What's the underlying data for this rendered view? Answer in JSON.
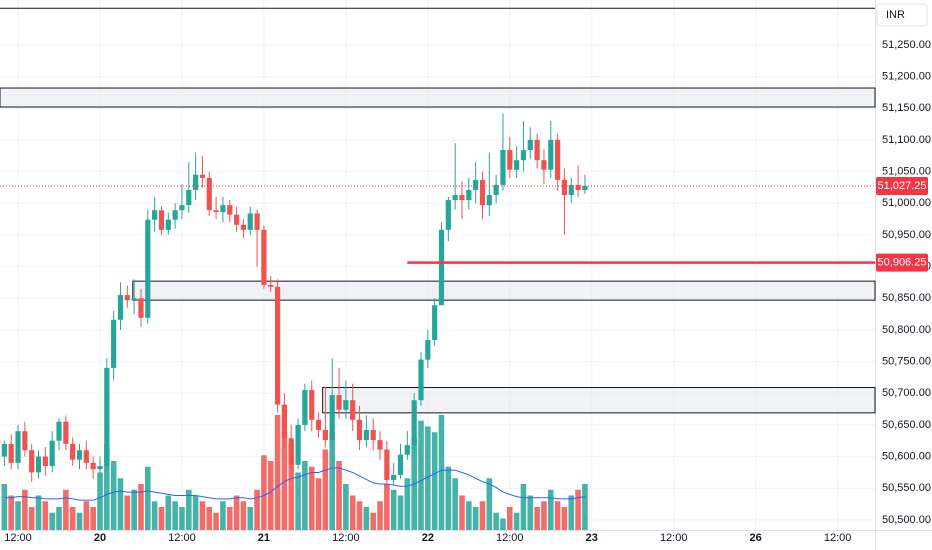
{
  "chart_data": {
    "type": "candlestick",
    "currency": "INR",
    "x": [
      -14,
      -13,
      -12,
      -11,
      -10,
      -9,
      -8,
      -7,
      -6,
      -5,
      -4,
      -3,
      -2,
      -1,
      0,
      1,
      2,
      3,
      4,
      5,
      6,
      7,
      8,
      9,
      10,
      11,
      12,
      13,
      14,
      15,
      16,
      17,
      18,
      19,
      20,
      21,
      22,
      23,
      24,
      25,
      26,
      27,
      28,
      29,
      30,
      31,
      32,
      33,
      34,
      35,
      36,
      37,
      38,
      39,
      40,
      41,
      42,
      43,
      44,
      45,
      46,
      47,
      48,
      49,
      50,
      51,
      52,
      53,
      54,
      55,
      56,
      57,
      58,
      59,
      60,
      61,
      62,
      63,
      64,
      65,
      66,
      67,
      68,
      69,
      70,
      71
    ],
    "open": [
      50600,
      50620,
      50590,
      50640,
      50610,
      50575,
      50600,
      50585,
      50625,
      50655,
      50620,
      50595,
      50610,
      50590,
      50580,
      50585,
      50740,
      50816,
      50855,
      50847,
      50850,
      50819,
      50974,
      50989,
      50958,
      50974,
      50989,
      50997,
      51021,
      51045,
      51040,
      50989,
      50986,
      50997,
      50982,
      50966,
      50958,
      50984,
      50958,
      50871,
      50868,
      50682,
      50629,
      50587,
      50650,
      50705,
      50658,
      50642,
      50626,
      50697,
      50674,
      50689,
      50658,
      50626,
      50642,
      50626,
      50611,
      50563,
      50571,
      50603,
      50618,
      50689,
      50753,
      50784,
      50839,
      50958,
      51005,
      51013,
      51005,
      51021,
      51037,
      50997,
      51013,
      51029,
      51084,
      51053,
      51068,
      51084,
      51100,
      51068,
      51053,
      51100,
      51037,
      51013,
      51029,
      51021
    ],
    "high": [
      50625,
      50635,
      50650,
      50655,
      50620,
      50610,
      50615,
      50640,
      50660,
      50665,
      50630,
      50620,
      50625,
      50600,
      50600,
      50755,
      50830,
      50875,
      50870,
      50880,
      50865,
      50990,
      51010,
      50995,
      50985,
      51000,
      51030,
      51065,
      51080,
      51075,
      51050,
      51010,
      51010,
      51005,
      50995,
      50975,
      50995,
      50990,
      50965,
      50885,
      50880,
      50700,
      50650,
      50660,
      50715,
      50720,
      50670,
      50710,
      50755,
      50740,
      50720,
      50715,
      50680,
      50665,
      50660,
      50640,
      50625,
      50590,
      50620,
      50640,
      50700,
      50765,
      50800,
      50850,
      50970,
      51010,
      51095,
      51035,
      51040,
      51065,
      51050,
      51080,
      51045,
      51142,
      51105,
      51090,
      51130,
      51120,
      51110,
      51085,
      51130,
      51110,
      51055,
      51040,
      51060,
      51045
    ],
    "low": [
      50585,
      50580,
      50580,
      50600,
      50560,
      50565,
      50570,
      50575,
      50610,
      50610,
      50585,
      50580,
      50580,
      50565,
      50565,
      50575,
      50720,
      50800,
      50835,
      50825,
      50805,
      50810,
      50955,
      50950,
      50950,
      50960,
      50975,
      50985,
      51005,
      51025,
      50980,
      50975,
      50970,
      50970,
      50955,
      50945,
      50950,
      50900,
      50865,
      50860,
      50670,
      50615,
      50575,
      50580,
      50640,
      50640,
      50630,
      50615,
      50615,
      50660,
      50660,
      50640,
      50610,
      50615,
      50610,
      50595,
      50550,
      50555,
      50565,
      50595,
      50610,
      50680,
      50740,
      50775,
      50840,
      50940,
      50990,
      50975,
      50990,
      51000,
      50975,
      50980,
      51000,
      51020,
      51040,
      51040,
      51050,
      51070,
      51055,
      51030,
      51040,
      51020,
      50950,
      51000,
      51010,
      51015
    ],
    "close": [
      50620,
      50590,
      50640,
      50610,
      50575,
      50600,
      50585,
      50625,
      50655,
      50620,
      50595,
      50610,
      50590,
      50580,
      50585,
      50740,
      50816,
      50855,
      50847,
      50850,
      50819,
      50974,
      50989,
      50958,
      50974,
      50989,
      50997,
      51021,
      51045,
      51040,
      50989,
      50986,
      50997,
      50982,
      50966,
      50958,
      50984,
      50958,
      50871,
      50868,
      50682,
      50629,
      50587,
      50650,
      50705,
      50658,
      50642,
      50626,
      50697,
      50674,
      50689,
      50658,
      50626,
      50642,
      50626,
      50611,
      50563,
      50571,
      50603,
      50618,
      50689,
      50753,
      50784,
      50839,
      50958,
      51005,
      51013,
      51005,
      51021,
      51037,
      50997,
      51013,
      51029,
      51084,
      51053,
      51068,
      51084,
      51100,
      51068,
      51053,
      51100,
      51037,
      51013,
      51029,
      51021,
      51027.25
    ],
    "volume": [
      40,
      30,
      25,
      35,
      20,
      30,
      25,
      15,
      20,
      35,
      20,
      15,
      25,
      20,
      50,
      75,
      60,
      45,
      30,
      35,
      40,
      55,
      25,
      20,
      30,
      25,
      20,
      35,
      30,
      25,
      20,
      15,
      25,
      20,
      30,
      25,
      20,
      35,
      65,
      60,
      100,
      85,
      75,
      50,
      60,
      55,
      45,
      70,
      85,
      60,
      40,
      30,
      25,
      20,
      15,
      25,
      40,
      35,
      30,
      45,
      80,
      95,
      90,
      85,
      100,
      55,
      45,
      30,
      25,
      20,
      25,
      45,
      15,
      10,
      20,
      15,
      40,
      30,
      20,
      25,
      35,
      25,
      20,
      30,
      35,
      40
    ],
    "volume_ma": [
      28,
      28,
      29,
      29,
      28,
      28,
      27,
      27,
      27,
      28,
      27,
      26,
      26,
      26,
      28,
      31,
      33,
      34,
      33,
      33,
      33,
      34,
      33,
      32,
      31,
      30,
      30,
      30,
      30,
      29,
      28,
      27,
      27,
      27,
      28,
      28,
      27,
      28,
      30,
      33,
      38,
      42,
      45,
      46,
      48,
      50,
      50,
      52,
      54,
      54,
      52,
      50,
      47,
      44,
      41,
      40,
      40,
      39,
      38,
      38,
      40,
      43,
      46,
      49,
      52,
      52,
      52,
      50,
      48,
      45,
      42,
      40,
      37,
      33,
      31,
      29,
      28,
      28,
      28,
      28,
      28,
      27,
      27,
      27,
      28,
      29
    ],
    "volume_lim": [
      0,
      100
    ],
    "up_color": "#26a69a",
    "down_color": "#ef5350",
    "volume_ma_color": "#2962ff",
    "xlim": [
      -14.64,
      113.47
    ],
    "xticks": [
      {
        "value": -12,
        "label": "12:00"
      },
      0,
      12,
      24,
      36,
      48,
      60,
      72,
      84,
      96,
      108
    ],
    "xtick_labels": [
      "12:00",
      "20",
      "12:00",
      "21",
      "12:00",
      "22",
      "12:00",
      "23",
      "12:00",
      "26",
      "12:00"
    ],
    "ylim": [
      50484,
      51321
    ],
    "yticks": [
      {
        "value": 50500,
        "label": "50,500.00"
      },
      {
        "value": 50550,
        "label": "50,550.00"
      },
      {
        "value": 50600,
        "label": "50,600.00"
      },
      {
        "value": 50650,
        "label": "50,650.00"
      },
      {
        "value": 50700,
        "label": "50,700.00"
      },
      {
        "value": 50750,
        "label": "50,750.00"
      },
      {
        "value": 50800,
        "label": "50,800.00"
      },
      {
        "value": 50850,
        "label": "50,850.00"
      },
      {
        "value": 50900,
        "label": "50,900.00"
      },
      {
        "value": 50950,
        "label": "50,950.00"
      },
      {
        "value": 51000,
        "label": "51,000.00"
      },
      {
        "value": 51050,
        "label": "51,050.00"
      },
      {
        "value": 51100,
        "label": "51,100.00"
      },
      {
        "value": 51150,
        "label": "51,150.00"
      },
      {
        "value": 51200,
        "label": "51,200.00"
      },
      {
        "value": 51250,
        "label": "51,250.00"
      }
    ],
    "grid": true,
    "lines": [
      51308
    ],
    "zones": [
      {
        "low": 51152,
        "high": 51182,
        "x_start": -14.64
      },
      {
        "low": 50847,
        "high": 50877,
        "x_start": 4.8
      },
      {
        "low": 50669,
        "high": 50709,
        "x_start": 32.6
      }
    ],
    "level": {
      "value": 50906.25,
      "label": "50,906.25",
      "x_start": 45
    },
    "last_price": {
      "value": 51027.25,
      "label": "51,027.25"
    }
  }
}
